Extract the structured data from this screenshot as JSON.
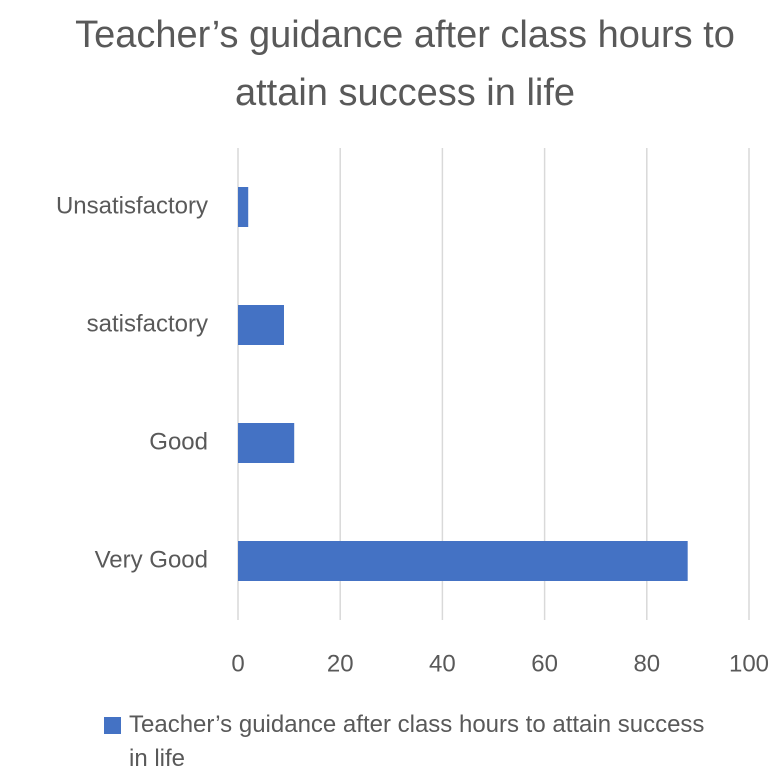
{
  "chart_data": {
    "type": "hbar",
    "title": "Teacher’s guidance after class hours to attain success in life",
    "categories": [
      "Unsatisfactory",
      "satisfactory",
      "Good",
      "Very Good"
    ],
    "series": [
      {
        "name": "Teacher’s guidance after class hours to attain success in life",
        "color": "#4472c4",
        "values": [
          2,
          9,
          11,
          88
        ]
      }
    ],
    "xlim": [
      0,
      100
    ],
    "xticks": [
      0,
      20,
      40,
      60,
      80,
      100
    ],
    "grid": true,
    "legend": "bottom"
  }
}
